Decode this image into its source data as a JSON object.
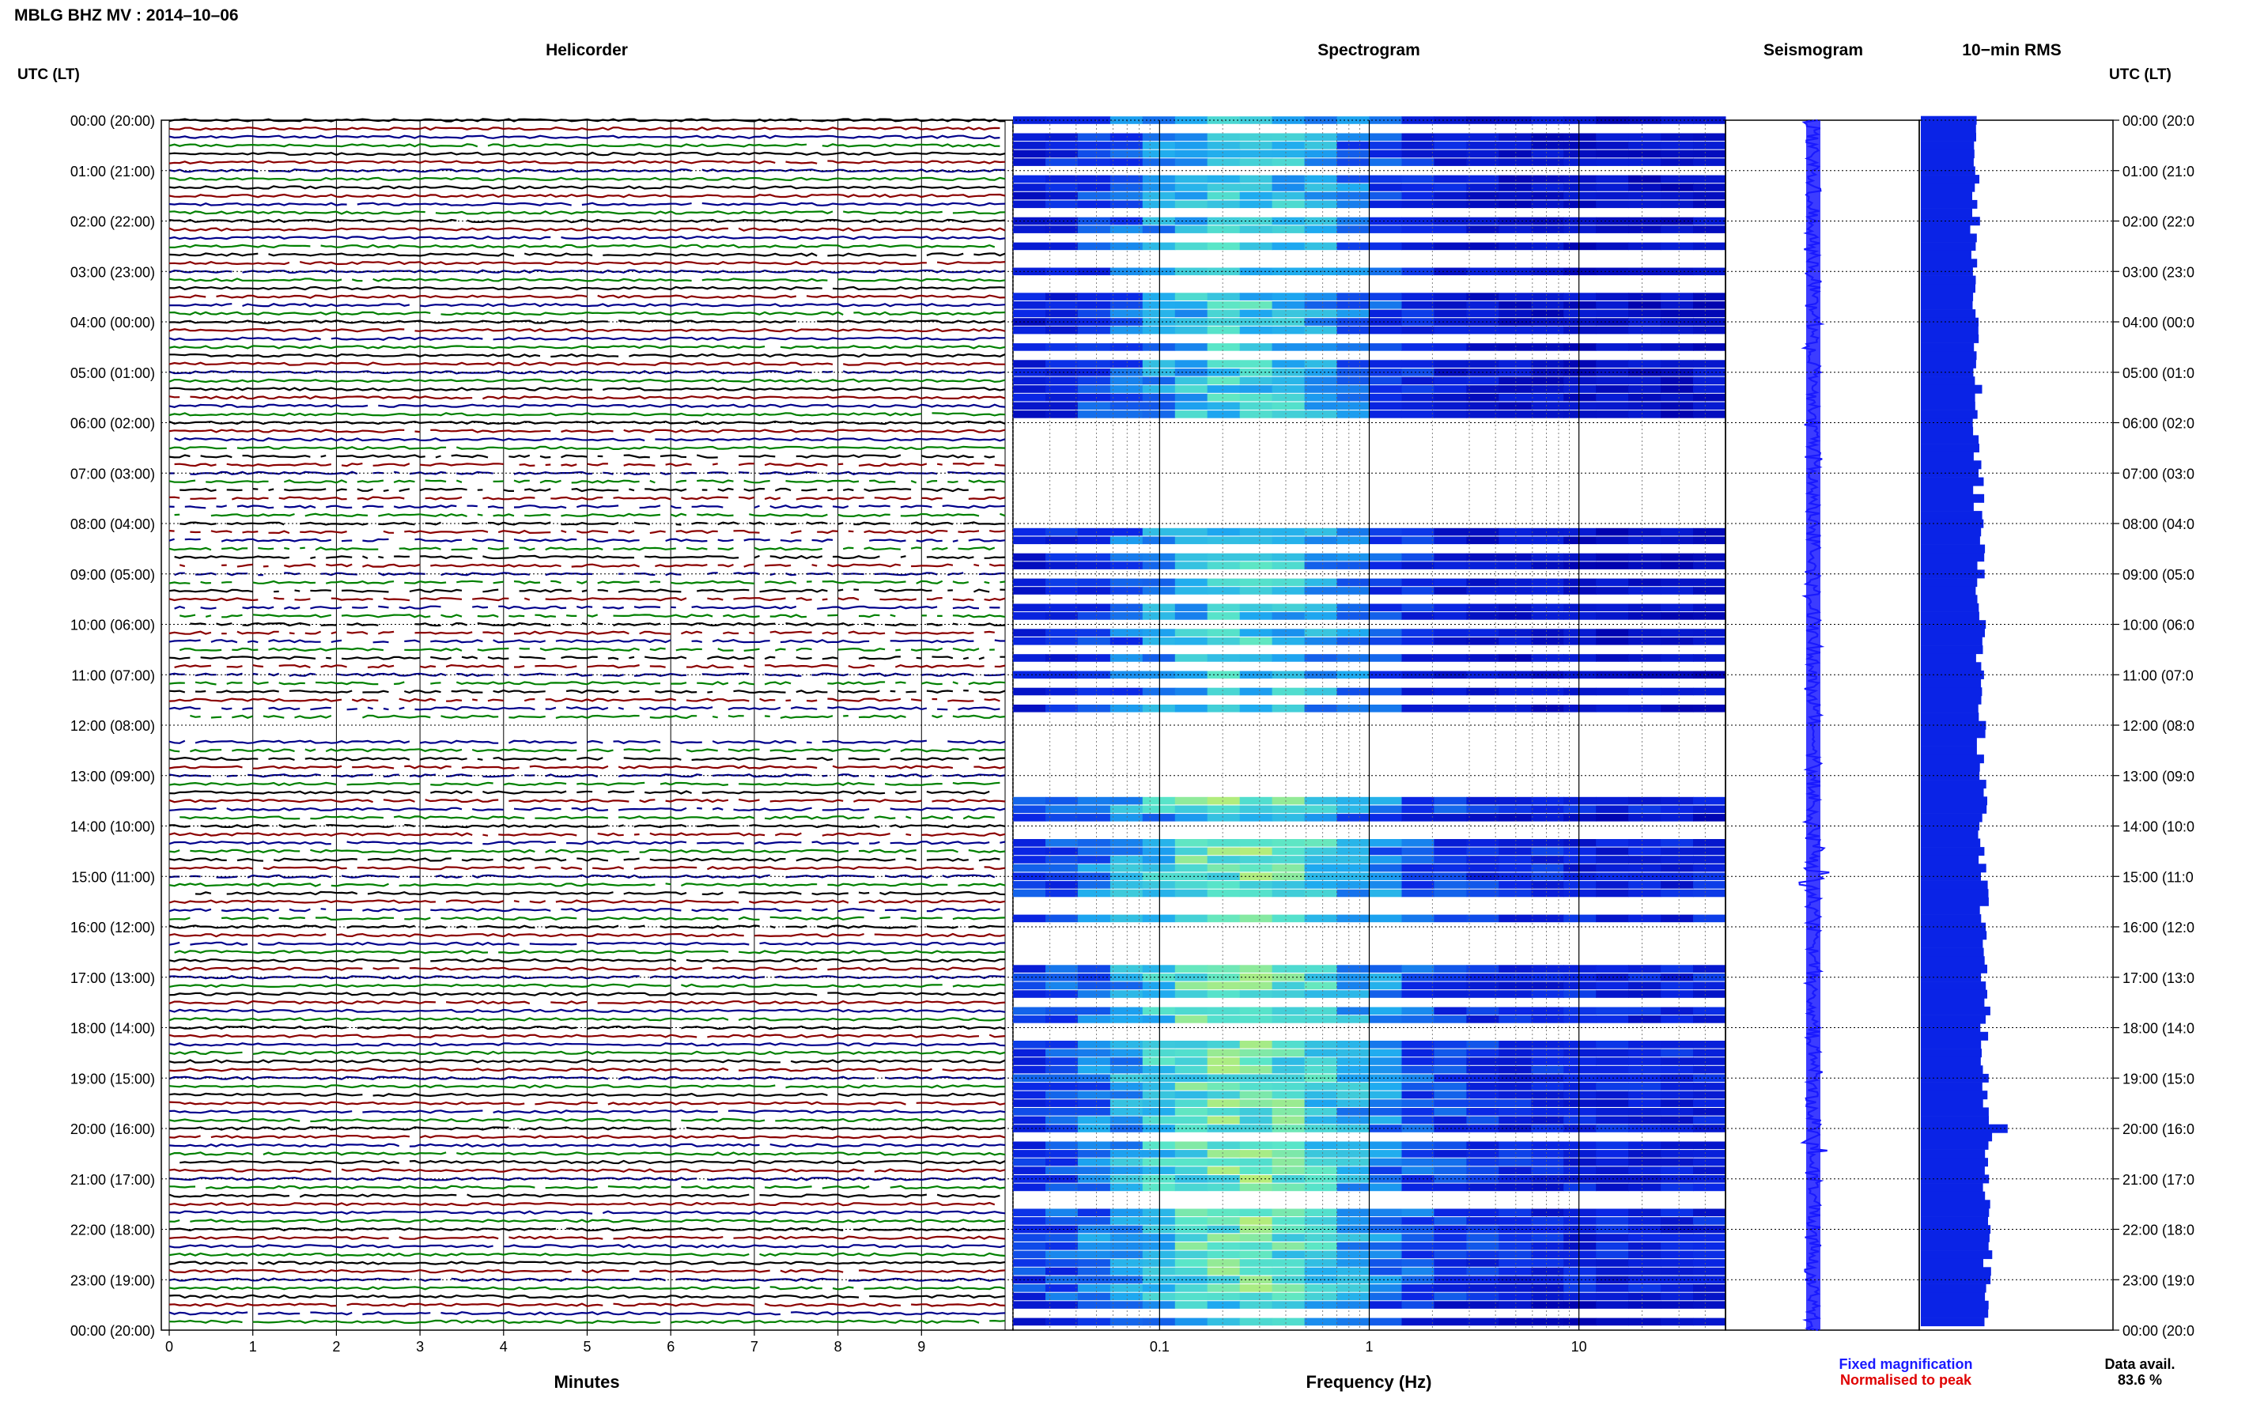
{
  "header": {
    "title": "MBLG BHZ MV : 2014–10–06"
  },
  "time_axis": {
    "label": "UTC (LT)",
    "ticks": [
      "00:00 (20:00)",
      "01:00 (21:00)",
      "02:00 (22:00)",
      "03:00 (23:00)",
      "04:00 (00:00)",
      "05:00 (01:00)",
      "06:00 (02:00)",
      "07:00 (03:00)",
      "08:00 (04:00)",
      "09:00 (05:00)",
      "10:00 (06:00)",
      "11:00 (07:00)",
      "12:00 (08:00)",
      "13:00 (09:00)",
      "14:00 (10:00)",
      "15:00 (11:00)",
      "16:00 (12:00)",
      "17:00 (13:00)",
      "18:00 (14:00)",
      "19:00 (15:00)",
      "20:00 (16:00)",
      "21:00 (17:00)",
      "22:00 (18:00)",
      "23:00 (19:00)",
      "00:00 (20:00)"
    ],
    "right_ticks": [
      "00:00 (20:0",
      "01:00 (21:0",
      "02:00 (22:0",
      "03:00 (23:0",
      "04:00 (00:0",
      "05:00 (01:0",
      "06:00 (02:0",
      "07:00 (03:0",
      "08:00 (04:0",
      "09:00 (05:0",
      "10:00 (06:0",
      "11:00 (07:0",
      "12:00 (08:0",
      "13:00 (09:0",
      "14:00 (10:0",
      "15:00 (11:0",
      "16:00 (12:0",
      "17:00 (13:0",
      "18:00 (14:0",
      "19:00 (15:0",
      "20:00 (16:0",
      "21:00 (17:0",
      "22:00 (18:0",
      "23:00 (19:0",
      "00:00 (20:0"
    ]
  },
  "legend": {
    "fixed": "Fixed magnification",
    "normalised": "Normalised to peak",
    "fixed_color": "#1a1aff",
    "normalised_color": "#e00000"
  },
  "data_avail": {
    "label": "Data avail.",
    "value": "83.6 %"
  },
  "colors": {
    "trace": [
      "#000000",
      "#8b0000",
      "#00008b",
      "#008000"
    ],
    "seismogram": "#1a1aff",
    "rms": "#0a23e6"
  },
  "chart_data": [
    {
      "type": "line",
      "title": "Helicorder",
      "xlabel": "Minutes",
      "ylabel": "UTC (LT)",
      "xlim": [
        0,
        10
      ],
      "xticks": [
        "0",
        "1",
        "2",
        "3",
        "4",
        "5",
        "6",
        "7",
        "8",
        "9"
      ],
      "rows_per_hour": 6,
      "grid": true
    },
    {
      "type": "heatmap",
      "title": "Spectrogram",
      "xlabel": "Frequency (Hz)",
      "xscale": "log",
      "xlim": [
        0.02,
        50
      ],
      "xticks": [
        "0.1",
        "1",
        "10"
      ],
      "grid": true
    },
    {
      "type": "line",
      "title": "Seismogram",
      "legend": [
        "Fixed magnification",
        "Normalised to peak"
      ]
    },
    {
      "type": "bar",
      "title": "10−min RMS",
      "orientation": "horizontal"
    }
  ]
}
